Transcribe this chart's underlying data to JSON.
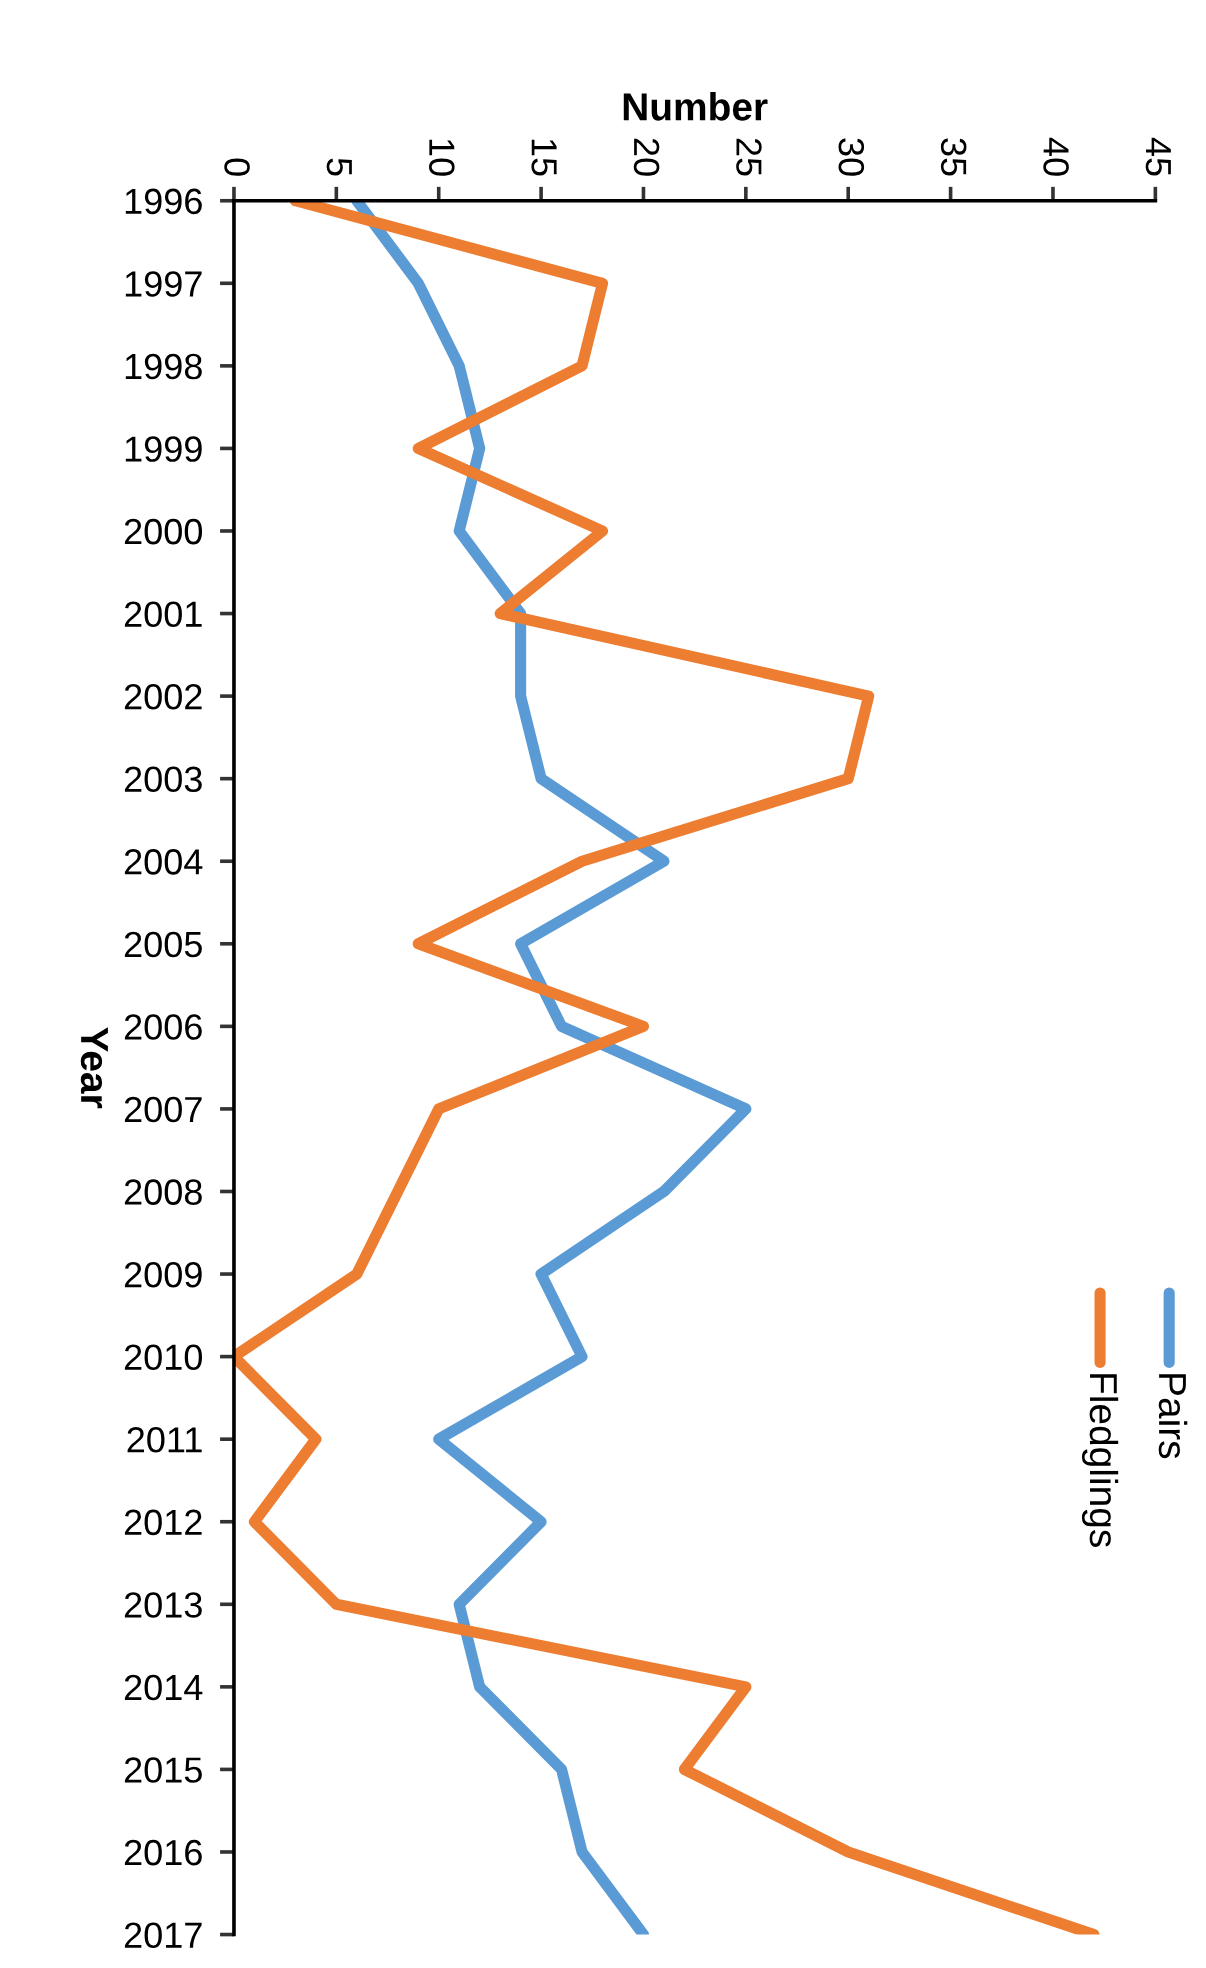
{
  "chart_data": {
    "type": "line",
    "orientation": "horizontal",
    "xlabel": "Number",
    "ylabel": "Year",
    "categories": [
      "1996",
      "1997",
      "1998",
      "1999",
      "2000",
      "2001",
      "2002",
      "2003",
      "2004",
      "2005",
      "2006",
      "2007",
      "2008",
      "2009",
      "2010",
      "2011",
      "2012",
      "2013",
      "2014",
      "2015",
      "2016",
      "2017"
    ],
    "series": [
      {
        "name": "Pairs",
        "color": "#5b9bd5",
        "values": [
          6,
          9,
          11,
          12,
          11,
          14,
          14,
          15,
          21,
          14,
          16,
          25,
          21,
          15,
          17,
          10,
          15,
          11,
          12,
          16,
          17,
          20
        ]
      },
      {
        "name": "Fledglings",
        "color": "#ed7d31",
        "values": [
          3,
          18,
          17,
          9,
          18,
          13,
          31,
          30,
          17,
          9,
          20,
          10,
          8,
          6,
          0,
          4,
          1,
          5,
          25,
          22,
          30,
          42
        ]
      }
    ],
    "xlim": [
      0,
      45
    ],
    "xticks": [
      0,
      5,
      10,
      15,
      20,
      25,
      30,
      35,
      40,
      45
    ],
    "grid": false,
    "legend": "right",
    "marker": "none",
    "line_style": "solid"
  }
}
